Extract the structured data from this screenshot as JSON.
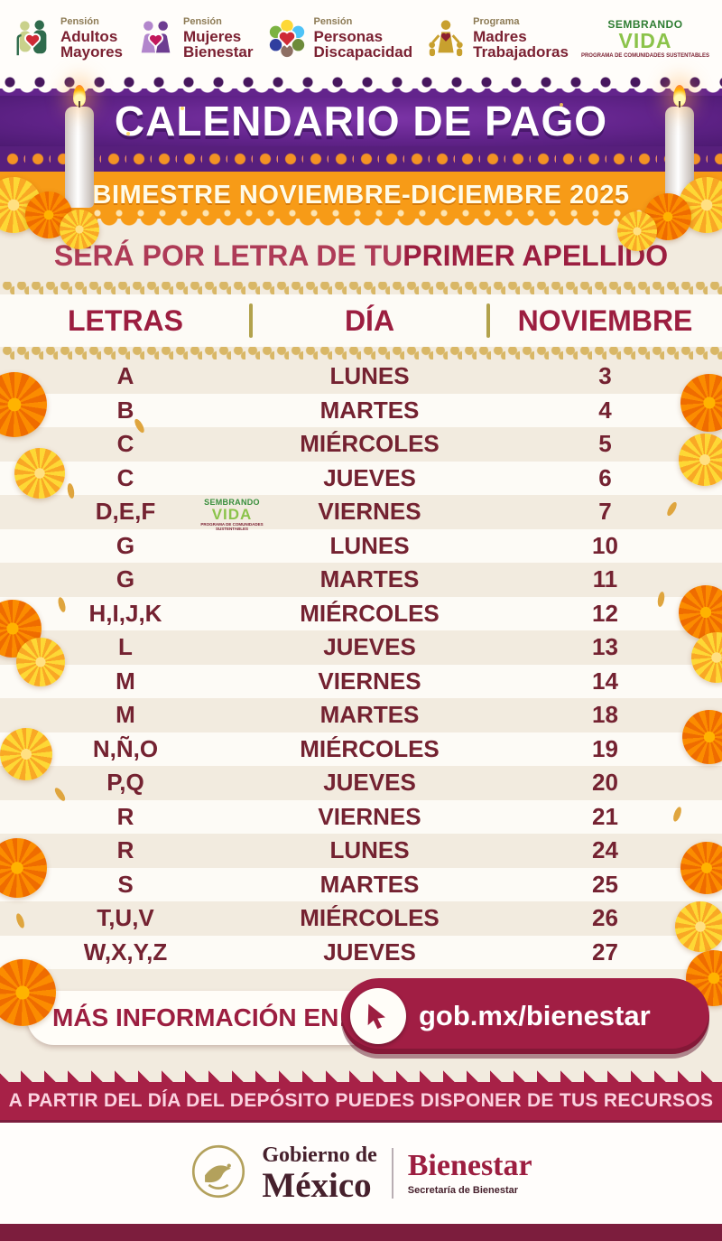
{
  "header": {
    "programs": [
      {
        "kicker": "Pensión",
        "line1": "Adultos",
        "line2": "Mayores"
      },
      {
        "kicker": "Pensión",
        "line1": "Mujeres",
        "line2": "Bienestar"
      },
      {
        "kicker": "Pensión",
        "line1": "Personas",
        "line2": "Discapacidad"
      },
      {
        "kicker": "Programa",
        "line1": "Madres",
        "line2": "Trabajadoras"
      }
    ],
    "sembrando": {
      "line1": "SEMBRANDO",
      "line2": "VIDA",
      "line3": "PROGRAMA DE COMUNIDADES SUSTENTABLES"
    }
  },
  "banner": {
    "title": "CALENDARIO DE PAGO",
    "subtitle": "BIMESTRE NOVIEMBRE-DICIEMBRE 2025"
  },
  "intro": {
    "regular": "SERÁ POR LETRA DE TU ",
    "bold": "PRIMER APELLIDO"
  },
  "table": {
    "headers": {
      "letters": "LETRAS",
      "day": "DÍA",
      "month": "NOVIEMBRE"
    },
    "rows": [
      {
        "letters": "A",
        "day": "LUNES",
        "date": "3"
      },
      {
        "letters": "B",
        "day": "MARTES",
        "date": "4"
      },
      {
        "letters": "C",
        "day": "MIÉRCOLES",
        "date": "5"
      },
      {
        "letters": "C",
        "day": "JUEVES",
        "date": "6"
      },
      {
        "letters": "D,E,F",
        "day": "VIERNES",
        "date": "7"
      },
      {
        "letters": "G",
        "day": "LUNES",
        "date": "10"
      },
      {
        "letters": "G",
        "day": "MARTES",
        "date": "11"
      },
      {
        "letters": "H,I,J,K",
        "day": "MIÉRCOLES",
        "date": "12"
      },
      {
        "letters": "L",
        "day": "JUEVES",
        "date": "13"
      },
      {
        "letters": "M",
        "day": "VIERNES",
        "date": "14"
      },
      {
        "letters": "M",
        "day": "MARTES",
        "date": "18"
      },
      {
        "letters": "N,Ñ,O",
        "day": "MIÉRCOLES",
        "date": "19"
      },
      {
        "letters": "P,Q",
        "day": "JUEVES",
        "date": "20"
      },
      {
        "letters": "R",
        "day": "VIERNES",
        "date": "21"
      },
      {
        "letters": "R",
        "day": "LUNES",
        "date": "24"
      },
      {
        "letters": "S",
        "day": "MARTES",
        "date": "25"
      },
      {
        "letters": "T,U,V",
        "day": "MIÉRCOLES",
        "date": "26"
      },
      {
        "letters": "W,X,Y,Z",
        "day": "JUEVES",
        "date": "27"
      }
    ],
    "watermark": {
      "line1": "SEMBRANDO",
      "line2": "VIDA",
      "line3": "PROGRAMA DE COMUNIDADES SUSTENTABLES"
    }
  },
  "info_bar": {
    "label_regular": "MÁS ",
    "label_bold": "INFORMACIÓN",
    "label_suffix": " EN:",
    "url": "gob.mx/bienestar"
  },
  "notice": {
    "text": "A PARTIR DEL DÍA DEL DEPÓSITO PUEDES DISPONER DE TUS RECURSOS"
  },
  "footer": {
    "gov_top": "Gobierno de",
    "gov_bottom": "México",
    "brand": "Bienestar",
    "brand_sub": "Secretaría de Bienestar"
  },
  "colors": {
    "purple": "#63248c",
    "orange": "#f79b17",
    "maroon": "#9c1e40",
    "row_text": "#742231",
    "cream": "#f2ebdf",
    "crimson_band": "#a72147",
    "band_text": "#fbd3e0",
    "gold_rope": "#d9b766",
    "footer_bar": "#7c1d3d"
  }
}
